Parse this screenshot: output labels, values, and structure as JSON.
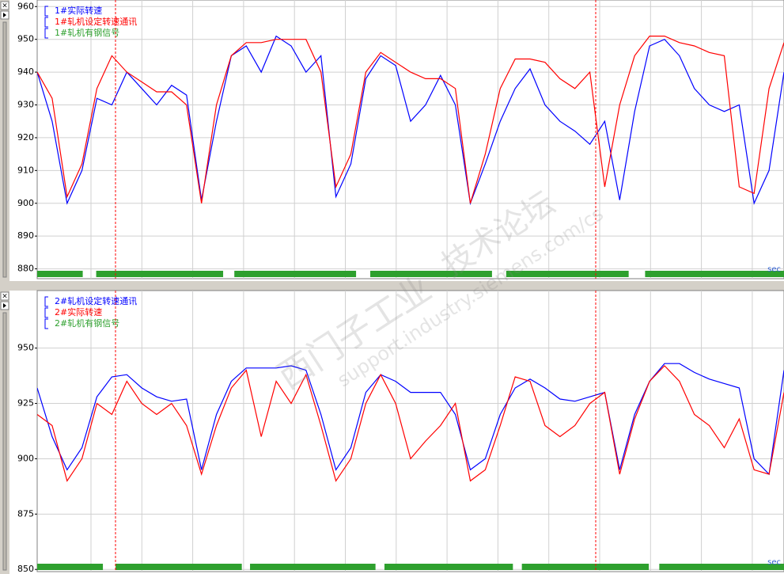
{
  "chart_data": [
    {
      "type": "line",
      "xlabel": "sec",
      "x": [
        0,
        2,
        4,
        6,
        8,
        10,
        12,
        14,
        16,
        18,
        20,
        22,
        24,
        26,
        28,
        30,
        32,
        34,
        36,
        38,
        40,
        42,
        44,
        46,
        48,
        50,
        52,
        54,
        56,
        58,
        60,
        62,
        64,
        66,
        68,
        70,
        72,
        74,
        76,
        78,
        80,
        82,
        84,
        86,
        88,
        90,
        92,
        94,
        96,
        98,
        100
      ],
      "xlim": [
        0,
        100
      ],
      "ylim": [
        877,
        962
      ],
      "yticks": [
        880,
        890,
        900,
        910,
        920,
        930,
        940,
        950,
        960
      ],
      "grid": true,
      "series": [
        {
          "name": "1#实际转速",
          "color": "#0000ff",
          "values": [
            940,
            925,
            900,
            910,
            932,
            930,
            940,
            935,
            930,
            936,
            933,
            901,
            925,
            945,
            948,
            940,
            951,
            948,
            940,
            945,
            902,
            912,
            938,
            945,
            942,
            925,
            930,
            939,
            930,
            900,
            912,
            925,
            935,
            941,
            930,
            925,
            922,
            918,
            925,
            901,
            928,
            948,
            950,
            945,
            935,
            930,
            928,
            930,
            900,
            910,
            940
          ]
        },
        {
          "name": "1#轧机设定转速通讯",
          "color": "#ff0000",
          "values": [
            940,
            932,
            902,
            912,
            935,
            945,
            940,
            937,
            934,
            934,
            930,
            900,
            930,
            945,
            949,
            949,
            950,
            950,
            950,
            940,
            905,
            915,
            940,
            946,
            943,
            940,
            938,
            938,
            935,
            900,
            915,
            935,
            944,
            944,
            943,
            938,
            935,
            940,
            905,
            930,
            945,
            951,
            951,
            949,
            948,
            946,
            945,
            905,
            903,
            935,
            949
          ]
        },
        {
          "name": "1#轧机有钢信号",
          "color": "#2ea02e",
          "intervals": [
            [
              0,
              6.1
            ],
            [
              7.9,
              24.9
            ],
            [
              26.4,
              42.7
            ],
            [
              44.6,
              60.9
            ],
            [
              62.8,
              79.2
            ],
            [
              81.4,
              100
            ]
          ]
        }
      ]
    },
    {
      "type": "line",
      "xlabel": "sec",
      "x": [
        0,
        2,
        4,
        6,
        8,
        10,
        12,
        14,
        16,
        18,
        20,
        22,
        24,
        26,
        28,
        30,
        32,
        34,
        36,
        38,
        40,
        42,
        44,
        46,
        48,
        50,
        52,
        54,
        56,
        58,
        60,
        62,
        64,
        66,
        68,
        70,
        72,
        74,
        76,
        78,
        80,
        82,
        84,
        86,
        88,
        90,
        92,
        94,
        96,
        98,
        100
      ],
      "xlim": [
        0,
        100
      ],
      "ylim": [
        849,
        976
      ],
      "yticks": [
        850,
        875,
        900,
        925,
        950
      ],
      "grid": true,
      "series": [
        {
          "name": "2#轧机设定转速通讯",
          "color": "#0000ff",
          "values": [
            932,
            910,
            895,
            905,
            928,
            937,
            938,
            932,
            928,
            926,
            927,
            895,
            920,
            935,
            941,
            941,
            941,
            942,
            940,
            920,
            895,
            905,
            930,
            938,
            935,
            930,
            930,
            930,
            920,
            895,
            900,
            920,
            932,
            936,
            932,
            927,
            926,
            928,
            930,
            895,
            920,
            935,
            943,
            943,
            939,
            936,
            934,
            932,
            900,
            893,
            940
          ]
        },
        {
          "name": "2#实际转速",
          "color": "#ff0000",
          "values": [
            920,
            915,
            890,
            900,
            925,
            920,
            935,
            925,
            920,
            925,
            915,
            893,
            915,
            932,
            940,
            910,
            935,
            925,
            938,
            915,
            890,
            900,
            925,
            938,
            925,
            900,
            908,
            915,
            925,
            890,
            895,
            915,
            937,
            935,
            915,
            910,
            915,
            925,
            930,
            893,
            918,
            935,
            942,
            935,
            920,
            915,
            905,
            918,
            895,
            893,
            930
          ]
        },
        {
          "name": "2#轧机有钢信号",
          "color": "#2ea02e",
          "intervals": [
            [
              0,
              8.8
            ],
            [
              10.5,
              27.4
            ],
            [
              28.5,
              45.3
            ],
            [
              46.5,
              63.7
            ],
            [
              64.9,
              81.9
            ],
            [
              83.3,
              100
            ]
          ]
        }
      ]
    }
  ],
  "watermark": {
    "line1": "西门子工业",
    "line2": "技术论坛",
    "line3": "support.industry.siemens.com/cs"
  }
}
